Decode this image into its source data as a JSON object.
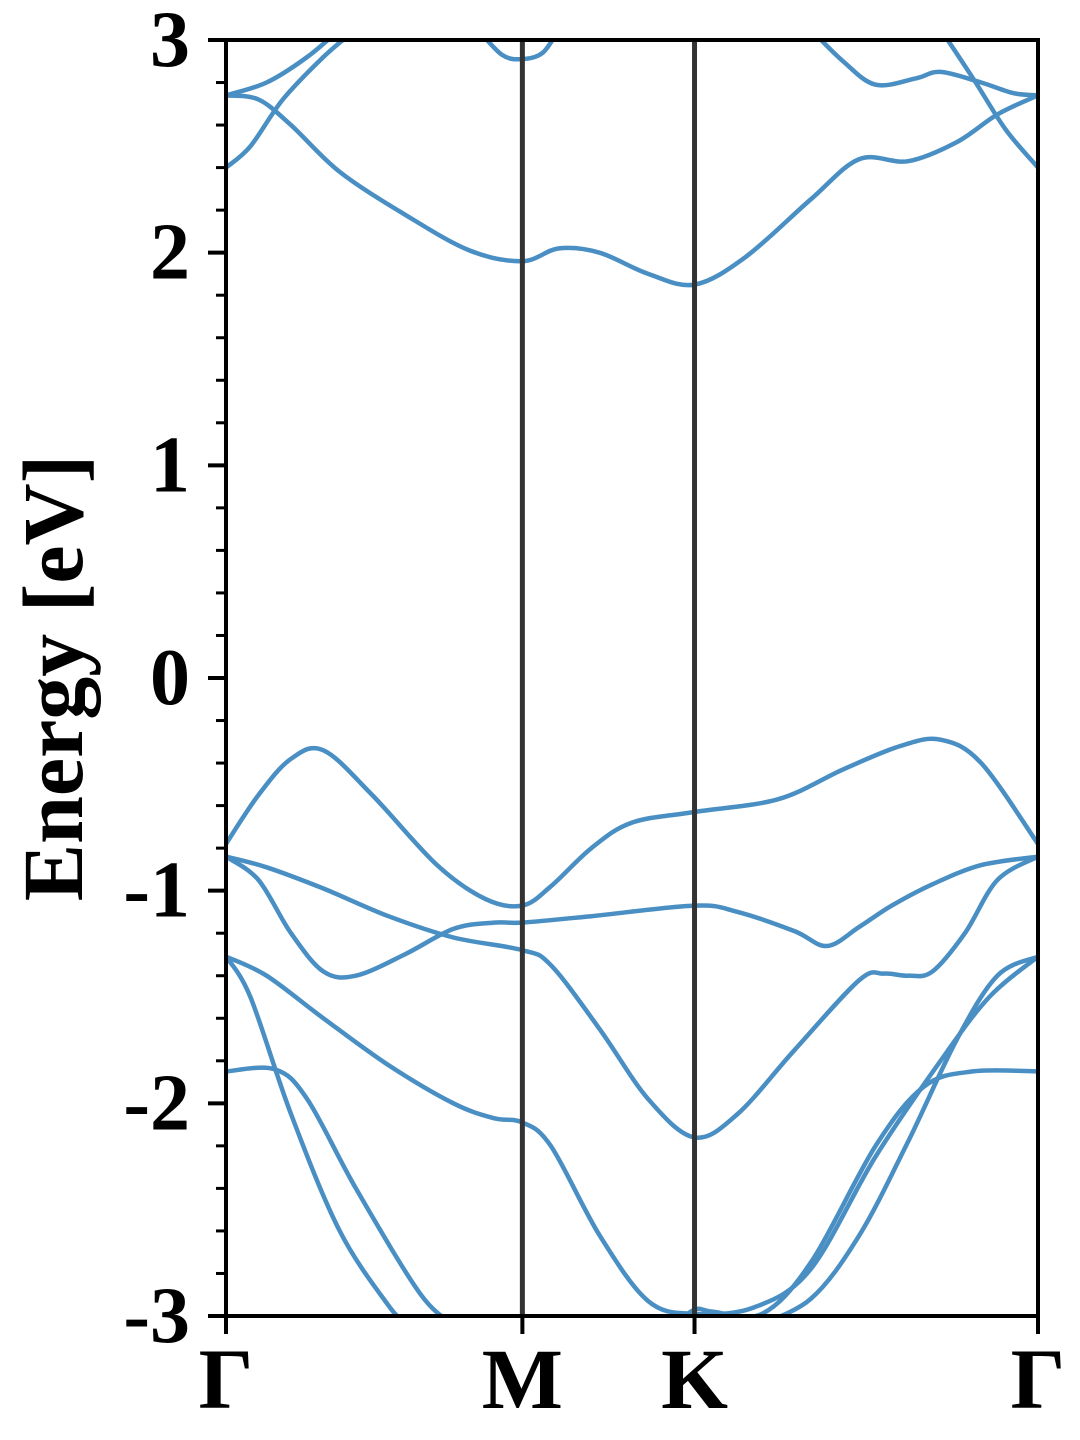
{
  "chart_data": {
    "type": "line",
    "title": "",
    "xlabel": "",
    "ylabel": "Energy [eV]",
    "ylim": [
      -3,
      3
    ],
    "yticks": [
      -3,
      -2,
      -1,
      0,
      1,
      2,
      3
    ],
    "yticklabels": [
      "-3",
      "-2",
      "-1",
      "0",
      "1",
      "2",
      "3"
    ],
    "yminor_step": 0.2,
    "xlim": [
      0,
      1
    ],
    "kpoints": [
      {
        "label": "Γ",
        "x": 0.0
      },
      {
        "label": "M",
        "x": 0.365
      },
      {
        "label": "K",
        "x": 0.577
      },
      {
        "label": "Γ",
        "x": 1.0
      }
    ],
    "grid": false,
    "colors": {
      "band": "#4a8fc3",
      "kpath_line": "#333333",
      "axes": "#000000"
    },
    "series": [
      {
        "values": [
          [
            0.0,
            -0.78
          ],
          [
            0.04,
            -0.55
          ],
          [
            0.08,
            -0.38
          ],
          [
            0.12,
            -0.34
          ],
          [
            0.18,
            -0.55
          ],
          [
            0.26,
            -0.88
          ],
          [
            0.32,
            -1.04
          ],
          [
            0.365,
            -1.07
          ],
          [
            0.4,
            -0.98
          ],
          [
            0.45,
            -0.8
          ],
          [
            0.5,
            -0.68
          ],
          [
            0.577,
            -0.63
          ],
          [
            0.68,
            -0.57
          ],
          [
            0.76,
            -0.43
          ],
          [
            0.83,
            -0.32
          ],
          [
            0.88,
            -0.29
          ],
          [
            0.93,
            -0.4
          ],
          [
            1.0,
            -0.78
          ]
        ]
      },
      {
        "values": [
          [
            0.0,
            -0.84
          ],
          [
            0.04,
            -0.95
          ],
          [
            0.08,
            -1.2
          ],
          [
            0.12,
            -1.38
          ],
          [
            0.16,
            -1.4
          ],
          [
            0.22,
            -1.3
          ],
          [
            0.28,
            -1.18
          ],
          [
            0.33,
            -1.15
          ],
          [
            0.365,
            -1.15
          ],
          [
            0.45,
            -1.12
          ],
          [
            0.577,
            -1.07
          ],
          [
            0.63,
            -1.1
          ],
          [
            0.7,
            -1.19
          ],
          [
            0.74,
            -1.26
          ],
          [
            0.78,
            -1.17
          ],
          [
            0.82,
            -1.07
          ],
          [
            0.87,
            -0.97
          ],
          [
            0.93,
            -0.88
          ],
          [
            1.0,
            -0.84
          ]
        ]
      },
      {
        "values": [
          [
            0.0,
            -0.84
          ],
          [
            0.05,
            -0.89
          ],
          [
            0.12,
            -0.99
          ],
          [
            0.2,
            -1.12
          ],
          [
            0.28,
            -1.22
          ],
          [
            0.365,
            -1.28
          ],
          [
            0.4,
            -1.35
          ],
          [
            0.46,
            -1.65
          ],
          [
            0.52,
            -1.98
          ],
          [
            0.577,
            -2.16
          ],
          [
            0.63,
            -2.05
          ],
          [
            0.7,
            -1.75
          ],
          [
            0.78,
            -1.42
          ],
          [
            0.81,
            -1.39
          ],
          [
            0.84,
            -1.4
          ],
          [
            0.87,
            -1.38
          ],
          [
            0.91,
            -1.2
          ],
          [
            0.95,
            -0.95
          ],
          [
            1.0,
            -0.84
          ]
        ]
      },
      {
        "values": [
          [
            0.0,
            -1.31
          ],
          [
            0.05,
            -1.4
          ],
          [
            0.12,
            -1.6
          ],
          [
            0.2,
            -1.82
          ],
          [
            0.28,
            -2.0
          ],
          [
            0.33,
            -2.07
          ],
          [
            0.365,
            -2.09
          ],
          [
            0.4,
            -2.2
          ],
          [
            0.46,
            -2.62
          ],
          [
            0.52,
            -2.93
          ],
          [
            0.577,
            -2.99
          ],
          [
            0.65,
            -2.96
          ],
          [
            0.72,
            -2.78
          ],
          [
            0.8,
            -2.25
          ],
          [
            0.88,
            -1.8
          ],
          [
            0.94,
            -1.5
          ],
          [
            1.0,
            -1.31
          ]
        ]
      },
      {
        "values": [
          [
            0.0,
            -1.31
          ],
          [
            0.03,
            -1.5
          ],
          [
            0.08,
            -2.05
          ],
          [
            0.14,
            -2.6
          ],
          [
            0.2,
            -2.95
          ],
          [
            0.225,
            -3.05
          ]
        ]
      },
      {
        "values": [
          [
            0.0,
            -1.85
          ],
          [
            0.06,
            -1.84
          ],
          [
            0.1,
            -1.98
          ],
          [
            0.16,
            -2.4
          ],
          [
            0.24,
            -2.9
          ],
          [
            0.285,
            -3.05
          ]
        ]
      },
      {
        "values": [
          [
            0.55,
            -3.05
          ],
          [
            0.577,
            -2.97
          ],
          [
            0.6,
            -2.98
          ],
          [
            0.66,
            -2.99
          ],
          [
            0.72,
            -2.75
          ],
          [
            0.8,
            -2.2
          ],
          [
            0.86,
            -1.92
          ],
          [
            0.92,
            -1.85
          ],
          [
            1.0,
            -1.85
          ]
        ]
      },
      {
        "values": [
          [
            0.65,
            -3.05
          ],
          [
            0.72,
            -2.92
          ],
          [
            0.78,
            -2.62
          ],
          [
            0.84,
            -2.18
          ],
          [
            0.9,
            -1.7
          ],
          [
            0.95,
            -1.4
          ],
          [
            1.0,
            -1.31
          ]
        ]
      },
      {
        "values": [
          [
            0.0,
            2.4
          ],
          [
            0.03,
            2.5
          ],
          [
            0.07,
            2.72
          ],
          [
            0.12,
            2.92
          ],
          [
            0.16,
            3.05
          ]
        ]
      },
      {
        "values": [
          [
            0.0,
            2.74
          ],
          [
            0.04,
            2.72
          ],
          [
            0.08,
            2.6
          ],
          [
            0.14,
            2.38
          ],
          [
            0.22,
            2.18
          ],
          [
            0.3,
            2.01
          ],
          [
            0.365,
            1.96
          ],
          [
            0.41,
            2.02
          ],
          [
            0.46,
            2.0
          ],
          [
            0.52,
            1.9
          ],
          [
            0.577,
            1.85
          ],
          [
            0.64,
            1.98
          ],
          [
            0.72,
            2.25
          ],
          [
            0.78,
            2.44
          ],
          [
            0.84,
            2.43
          ],
          [
            0.9,
            2.52
          ],
          [
            0.95,
            2.65
          ],
          [
            1.0,
            2.74
          ]
        ]
      },
      {
        "values": [
          [
            0.0,
            2.74
          ],
          [
            0.05,
            2.8
          ],
          [
            0.1,
            2.92
          ],
          [
            0.14,
            3.05
          ]
        ]
      },
      {
        "values": [
          [
            0.31,
            3.05
          ],
          [
            0.34,
            2.93
          ],
          [
            0.365,
            2.91
          ],
          [
            0.39,
            2.94
          ],
          [
            0.41,
            3.05
          ]
        ]
      },
      {
        "values": [
          [
            0.72,
            3.05
          ],
          [
            0.76,
            2.9
          ],
          [
            0.8,
            2.79
          ],
          [
            0.85,
            2.82
          ],
          [
            0.88,
            2.85
          ],
          [
            0.93,
            2.8
          ],
          [
            0.97,
            2.75
          ],
          [
            1.0,
            2.74
          ]
        ]
      },
      {
        "values": [
          [
            0.88,
            3.05
          ],
          [
            0.92,
            2.82
          ],
          [
            0.96,
            2.58
          ],
          [
            1.0,
            2.4
          ]
        ]
      }
    ]
  }
}
